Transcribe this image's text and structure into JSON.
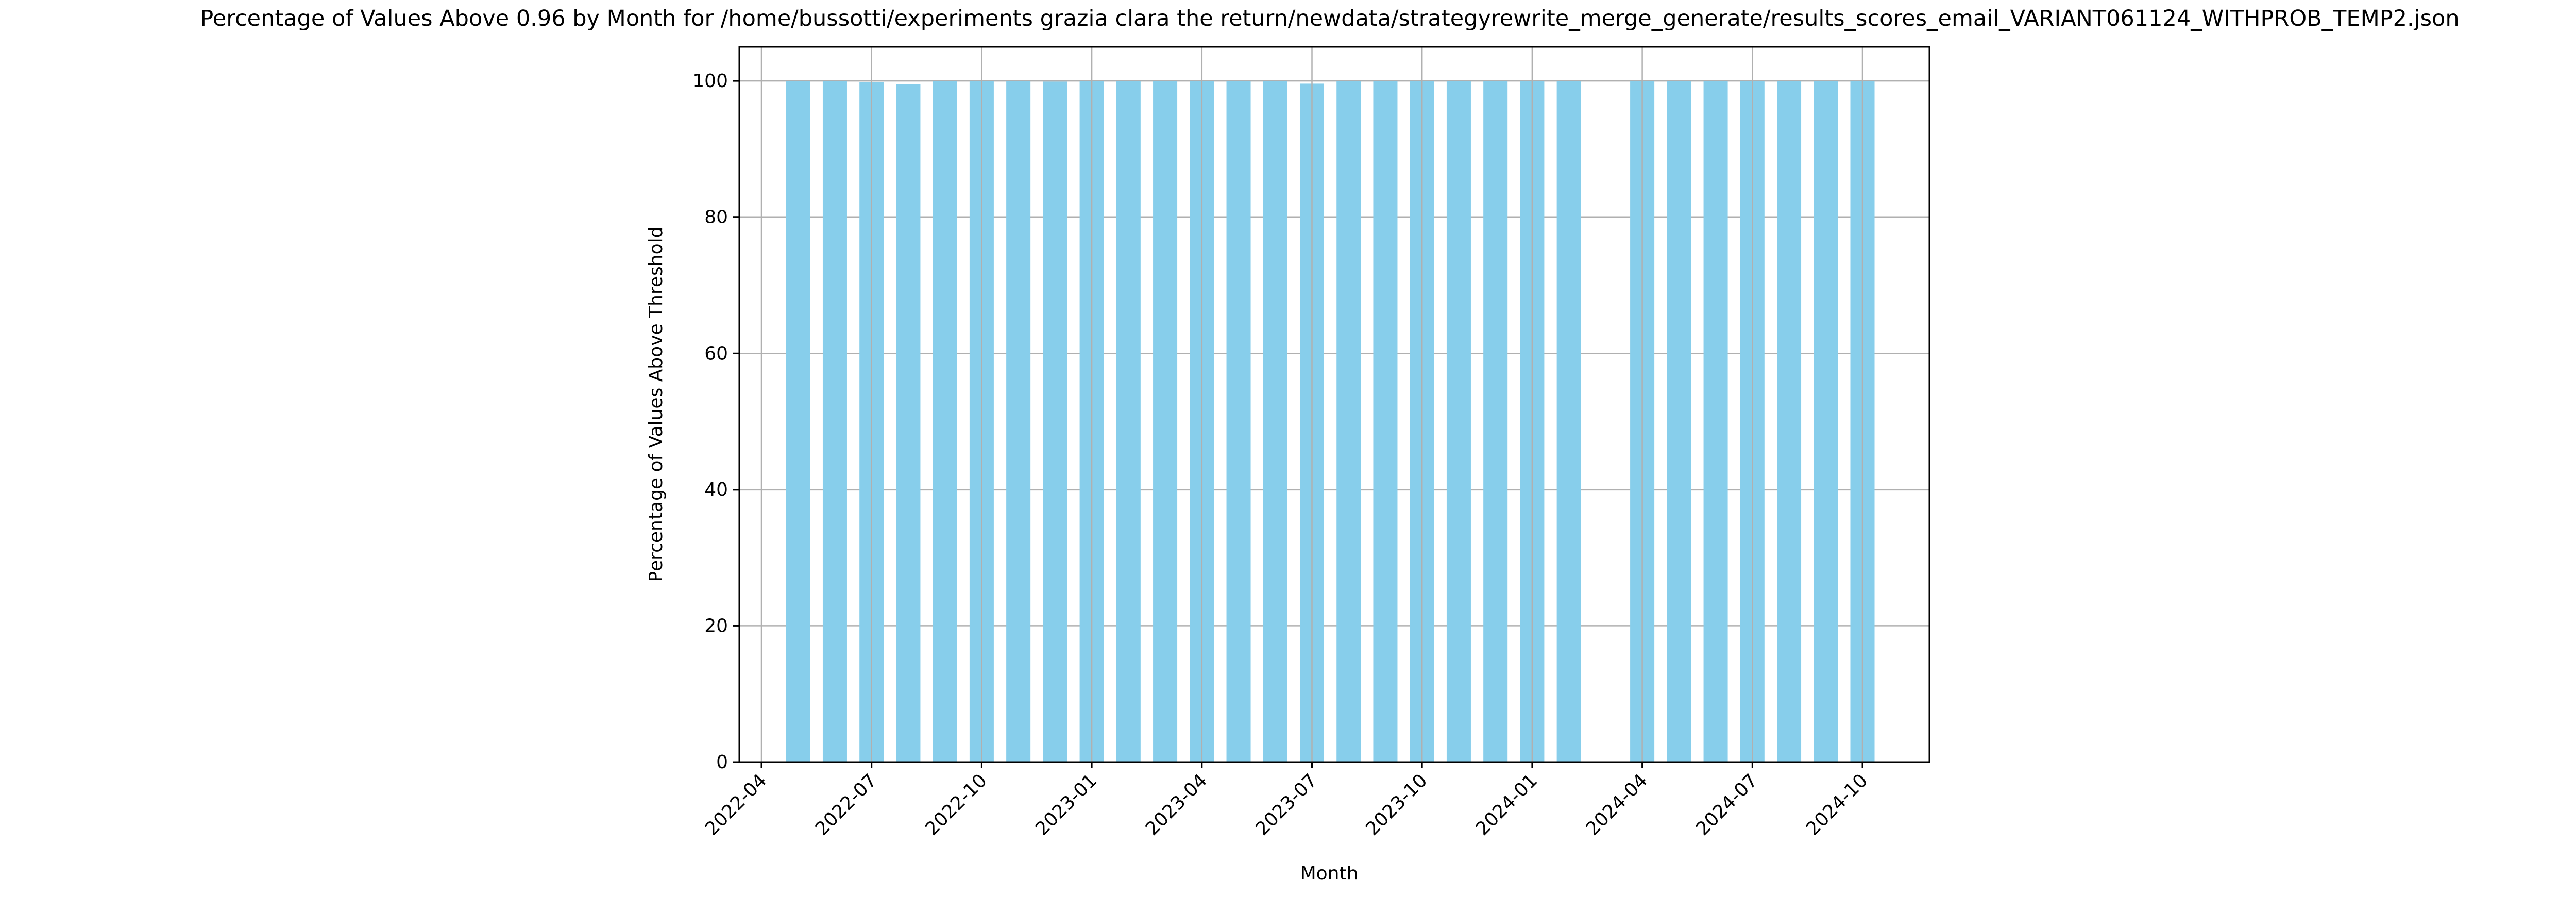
{
  "chart_data": {
    "type": "bar",
    "title": "Percentage of Values Above 0.96 by Month for /home/bussotti/experiments grazia clara the return/newdata/strategyrewrite_merge_generate/results_scores_email_VARIANT061124_WITHPROB_TEMP2.json",
    "xlabel": "Month",
    "ylabel": "Percentage of Values Above Threshold",
    "ylim": [
      0,
      105
    ],
    "grid": true,
    "bar_color": "#87ceeb",
    "categories": [
      "2022-05",
      "2022-06",
      "2022-07",
      "2022-08",
      "2022-09",
      "2022-10",
      "2022-11",
      "2022-12",
      "2023-01",
      "2023-02",
      "2023-03",
      "2023-04",
      "2023-05",
      "2023-06",
      "2023-07",
      "2023-08",
      "2023-09",
      "2023-10",
      "2023-11",
      "2023-12",
      "2024-01",
      "2024-02",
      "2024-03",
      "2024-04",
      "2024-05",
      "2024-06",
      "2024-07",
      "2024-08",
      "2024-09",
      "2024-10"
    ],
    "values": [
      100,
      100,
      99.8,
      99.5,
      100,
      100,
      100,
      99.9,
      100,
      100,
      100,
      100,
      100,
      100,
      99.6,
      100,
      100,
      100,
      100,
      100,
      100,
      100,
      null,
      100,
      100,
      100,
      100,
      100,
      100,
      100
    ],
    "x_ticks": [
      "2022-04",
      "2022-07",
      "2022-10",
      "2023-01",
      "2023-04",
      "2023-07",
      "2023-10",
      "2024-01",
      "2024-04",
      "2024-07",
      "2024-10"
    ],
    "y_ticks": [
      "0",
      "20",
      "40",
      "60",
      "80",
      "100"
    ]
  }
}
